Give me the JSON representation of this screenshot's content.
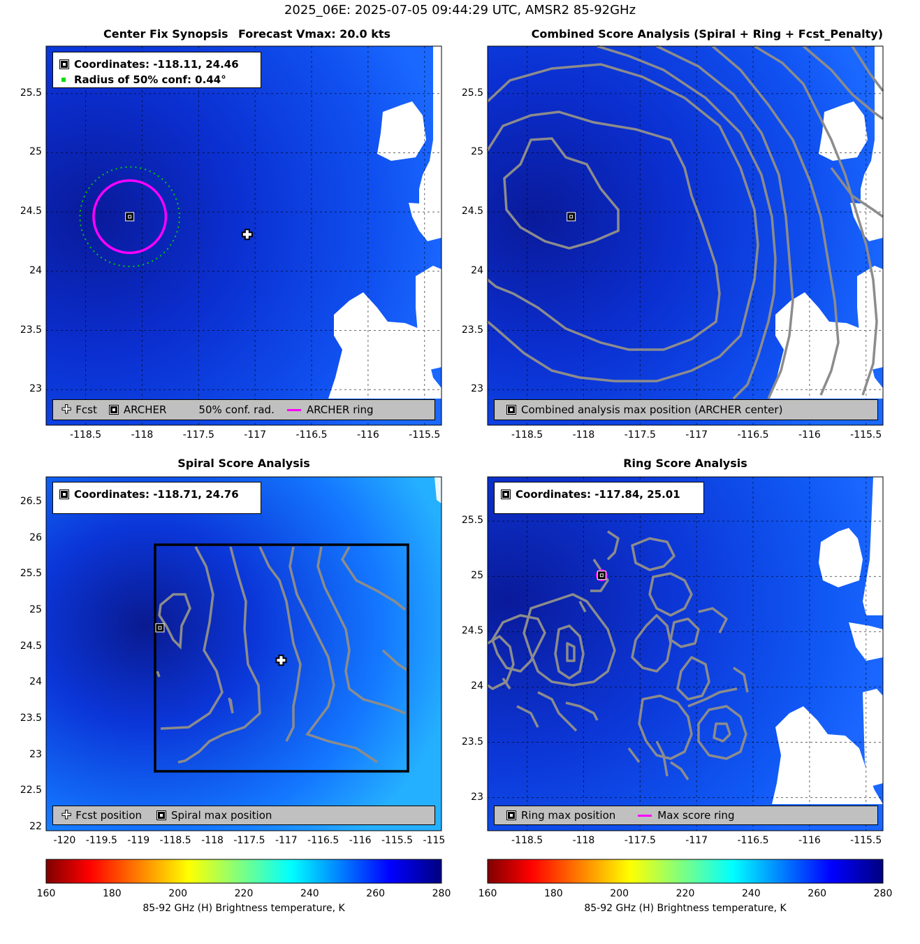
{
  "suptitle": "2025_06E: 2025-07-05 09:44:29 UTC, AMSR2 85-92GHz",
  "colors": {
    "archer_ring": "#ff00ff",
    "confidence_circle": "#00cc00",
    "contour": "#8c8c8c",
    "legend_bg": "#c0c0c0"
  },
  "panels": {
    "synopsis": {
      "title_left": "Center Fix Synopsis",
      "title_right": "Forecast Vmax: 20.0 kts",
      "info": {
        "coords": "Coordinates: -118.11, 24.46",
        "radius": "Radius of 50% conf: 0.44°"
      },
      "legend": {
        "fcst": "Fcst",
        "archer": "ARCHER",
        "conf": "50% conf. rad.",
        "ring": "ARCHER ring"
      },
      "xticks": [
        "-118.5",
        "-118",
        "-117.5",
        "-117",
        "-116.5",
        "-116",
        "-115.5"
      ],
      "yticks": [
        "25.5",
        "25",
        "24.5",
        "24",
        "23.5",
        "23"
      ]
    },
    "combined": {
      "title": "Combined Score Analysis (Spiral + Ring + Fcst_Penalty)",
      "legend": {
        "max": "Combined analysis max position (ARCHER center)"
      },
      "xticks": [
        "-118.5",
        "-118",
        "-117.5",
        "-117",
        "-116.5",
        "-116",
        "-115.5"
      ],
      "yticks": [
        "25.5",
        "25",
        "24.5",
        "24",
        "23.5",
        "23"
      ]
    },
    "spiral": {
      "title": "Spiral Score Analysis",
      "info": {
        "coords": "Coordinates: -118.71, 24.76"
      },
      "legend": {
        "fcst": "Fcst position",
        "max": "Spiral max position"
      },
      "xticks": [
        "-120",
        "-119.5",
        "-119",
        "-118.5",
        "-118",
        "-117.5",
        "-117",
        "-116.5",
        "-116",
        "-115.5",
        "-115"
      ],
      "yticks": [
        "26.5",
        "26",
        "25.5",
        "25",
        "24.5",
        "24",
        "23.5",
        "23",
        "22.5",
        "22"
      ]
    },
    "ring": {
      "title": "Ring Score Analysis",
      "info": {
        "coords": "Coordinates: -117.84, 25.01"
      },
      "legend": {
        "max": "Ring max position",
        "ring": "Max score ring"
      },
      "xticks": [
        "-118.5",
        "-118",
        "-117.5",
        "-117",
        "-116.5",
        "-116",
        "-115.5"
      ],
      "yticks": [
        "25.5",
        "25",
        "24.5",
        "24",
        "23.5",
        "23"
      ]
    }
  },
  "colorbar": {
    "label": "85-92 GHz (H) Brightness temperature, K",
    "ticks": [
      "160",
      "180",
      "200",
      "220",
      "240",
      "260",
      "280"
    ],
    "range": [
      160,
      280
    ]
  },
  "chart_data": [
    {
      "type": "heatmap",
      "title": "Center Fix Synopsis",
      "subtitle": "Forecast Vmax: 20.0 kts",
      "xlim": [
        -118.85,
        -115.35
      ],
      "ylim": [
        22.7,
        25.9
      ],
      "archer_center": {
        "x": -118.11,
        "y": 24.46
      },
      "forecast_position": {
        "x": -117.07,
        "y": 24.31
      },
      "confidence_radius_deg": 0.44,
      "archer_ring_radius_deg": 0.32,
      "grid": true
    },
    {
      "type": "heatmap",
      "title": "Combined Score Analysis (Spiral + Ring + Fcst_Penalty)",
      "xlim": [
        -118.85,
        -115.35
      ],
      "ylim": [
        22.7,
        25.9
      ],
      "max_position": {
        "x": -118.11,
        "y": 24.46
      },
      "grid": true
    },
    {
      "type": "heatmap",
      "title": "Spiral Score Analysis",
      "xlim": [
        -120.25,
        -114.9
      ],
      "ylim": [
        21.95,
        26.85
      ],
      "max_position": {
        "x": -118.71,
        "y": 24.76
      },
      "forecast_position": {
        "x": -117.07,
        "y": 24.31
      },
      "search_box": {
        "x": [
          -118.85,
          -115.45
        ],
        "y": [
          22.7,
          25.92
        ]
      },
      "grid": false
    },
    {
      "type": "heatmap",
      "title": "Ring Score Analysis",
      "xlim": [
        -118.85,
        -115.35
      ],
      "ylim": [
        22.7,
        25.9
      ],
      "max_position": {
        "x": -117.84,
        "y": 25.01
      },
      "grid": true
    }
  ]
}
